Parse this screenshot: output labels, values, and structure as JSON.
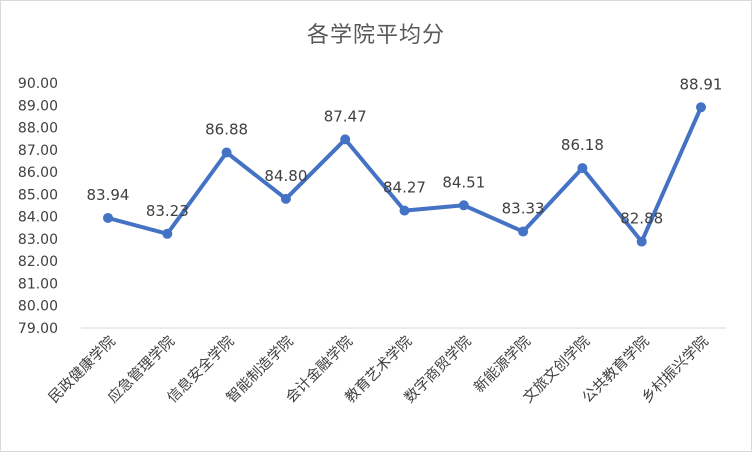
{
  "chart_data": {
    "type": "line",
    "title": "各学院平均分",
    "xlabel": "",
    "ylabel": "",
    "categories": [
      "民政健康学院",
      "应急管理学院",
      "信息安全学院",
      "智能制造学院",
      "会计金融学院",
      "教育艺术学院",
      "数字商贸学院",
      "新能源学院",
      "文旅文创学院",
      "公共教育学院",
      "乡村振兴学院"
    ],
    "series": [
      {
        "values": [
          83.94,
          83.23,
          86.88,
          84.8,
          87.47,
          84.27,
          84.51,
          83.33,
          86.18,
          82.88,
          88.91
        ]
      }
    ],
    "data_labels": [
      "83.94",
      "83.23",
      "86.88",
      "84.80",
      "87.47",
      "84.27",
      "84.51",
      "83.33",
      "86.18",
      "82.88",
      "88.91"
    ],
    "y_ticks": [
      "79.00",
      "80.00",
      "81.00",
      "82.00",
      "83.00",
      "84.00",
      "85.00",
      "86.00",
      "87.00",
      "88.00",
      "89.00",
      "90.00"
    ],
    "ylim": [
      79,
      90
    ],
    "grid": false,
    "legend": "none",
    "line_color": "#4472c4"
  }
}
